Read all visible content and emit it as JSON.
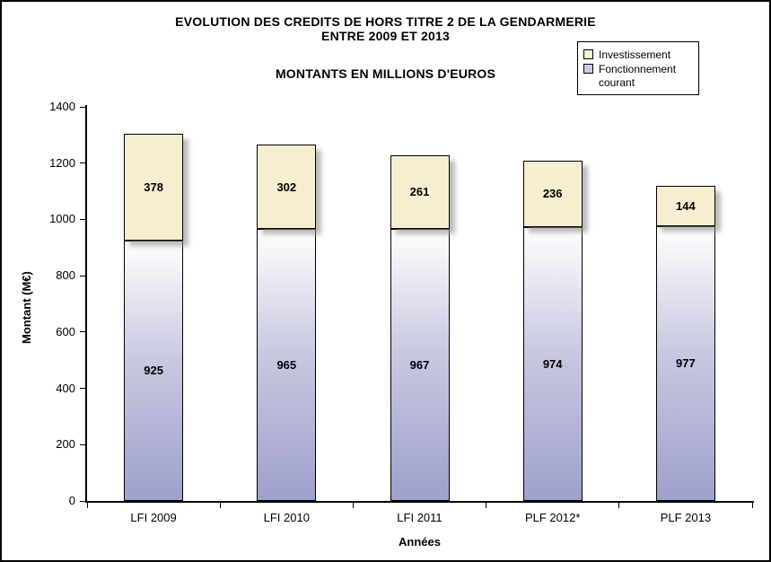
{
  "title": {
    "line1": "EVOLUTION DES CREDITS DE HORS TITRE 2 DE LA GENDARMERIE",
    "line2": "ENTRE 2009 ET 2013",
    "subtitle": "MONTANTS EN MILLIONS D'EUROS"
  },
  "legend": {
    "items": [
      {
        "label": "Investissement",
        "color": "#F7EDD0"
      },
      {
        "label": "Fonctionnement courant",
        "color": "#CBCBEA"
      }
    ]
  },
  "axes": {
    "y_label": "Montant (M€)",
    "x_label": "Années",
    "y_ticks": [
      0,
      200,
      400,
      600,
      800,
      1000,
      1200,
      1400
    ]
  },
  "chart_data": {
    "type": "bar",
    "stacked": true,
    "title": "EVOLUTION DES CREDITS DE HORS TITRE 2 DE LA GENDARMERIE ENTRE 2009 ET 2013",
    "subtitle": "MONTANTS EN MILLIONS D'EUROS",
    "categories": [
      "LFI 2009",
      "LFI 2010",
      "LFI 2011",
      "PLF 2012*",
      "PLF 2013"
    ],
    "series": [
      {
        "name": "Fonctionnement courant",
        "values": [
          925,
          965,
          967,
          974,
          977
        ],
        "color": "#A9A9D2"
      },
      {
        "name": "Investissement",
        "values": [
          378,
          302,
          261,
          236,
          144
        ],
        "color": "#F7EDD0"
      }
    ],
    "totals": [
      1303,
      1267,
      1228,
      1210,
      1121
    ],
    "xlabel": "Années",
    "ylabel": "Montant (M€)",
    "ylim": [
      0,
      1400
    ],
    "y_tick_step": 200,
    "grid": false,
    "legend_position": "top-right",
    "data_labels": true
  }
}
